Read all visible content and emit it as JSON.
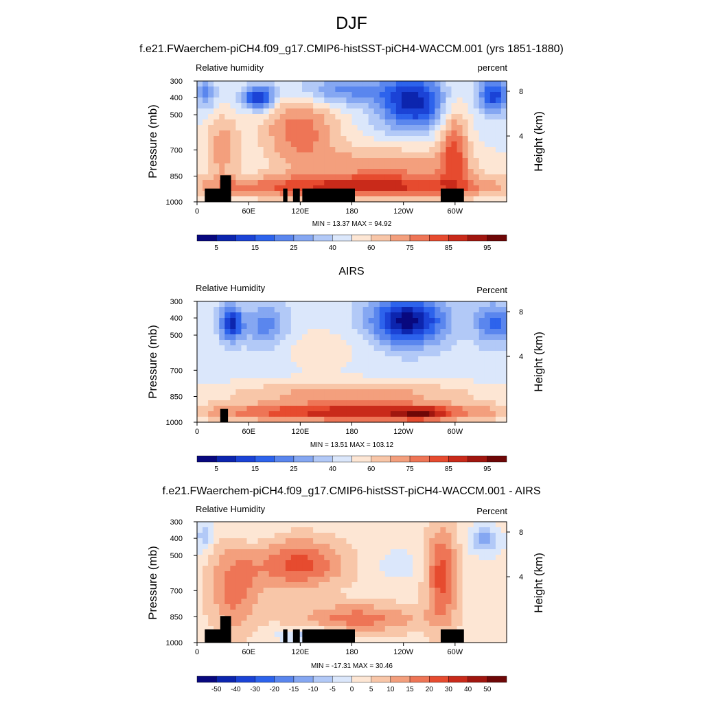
{
  "figure": {
    "title": "DJF",
    "colors": {
      "rh_scale": [
        "#08087e",
        "#0c25ae",
        "#1b43d6",
        "#2d63ec",
        "#5a86ee",
        "#85a7f2",
        "#b2c9f7",
        "#dbe7fb",
        "#fde6d4",
        "#f8c6a8",
        "#f39f7d",
        "#ee7556",
        "#e64b2f",
        "#c92a1a",
        "#a0160f",
        "#6e0707"
      ],
      "land": "#000000"
    }
  },
  "chart_data": [
    {
      "type": "heatmap",
      "title": "f.e21.FWaerchem-piCH4.f09_g17.CMIP6-histSST-piCH4-WACCM.001 (yrs 1851-1880)",
      "left_label": "Relative humidity",
      "right_label": "percent",
      "xlabel": "",
      "ylabel": "Pressure (mb)",
      "y2label": "Height (km)",
      "x_ticks": [
        "0",
        "60E",
        "120E",
        "180",
        "120W",
        "60W"
      ],
      "y_ticks": [
        "300",
        "400",
        "500",
        "700",
        "850",
        "1000"
      ],
      "y2_ticks": [
        "8",
        "4"
      ],
      "ylim": [
        1000,
        300
      ],
      "stats": "MIN =  13.37  MAX =  94.92",
      "min": 13.37,
      "max": 94.92,
      "colorbar_labels": [
        "5",
        "15",
        "25",
        "40",
        "60",
        "75",
        "85",
        "95"
      ]
    },
    {
      "type": "heatmap",
      "title": "AIRS",
      "left_label": "Relative Humidity",
      "right_label": "Percent",
      "xlabel": "",
      "ylabel": "Pressure (mb)",
      "y2label": "Height (km)",
      "x_ticks": [
        "0",
        "60E",
        "120E",
        "180",
        "120W",
        "60W"
      ],
      "y_ticks": [
        "300",
        "400",
        "500",
        "700",
        "850",
        "1000"
      ],
      "y2_ticks": [
        "8",
        "4"
      ],
      "ylim": [
        1000,
        300
      ],
      "stats": "MIN =  13.51  MAX = 103.12",
      "min": 13.51,
      "max": 103.12,
      "colorbar_labels": [
        "5",
        "15",
        "25",
        "40",
        "60",
        "75",
        "85",
        "95"
      ]
    },
    {
      "type": "heatmap",
      "title": "f.e21.FWaerchem-piCH4.f09_g17.CMIP6-histSST-piCH4-WACCM.001 - AIRS",
      "left_label": "Relative Humidity",
      "right_label": "Percent",
      "xlabel": "",
      "ylabel": "Pressure (mb)",
      "y2label": "Height (km)",
      "x_ticks": [
        "0",
        "60E",
        "120E",
        "180",
        "120W",
        "60W"
      ],
      "y_ticks": [
        "300",
        "400",
        "500",
        "700",
        "850",
        "1000"
      ],
      "y2_ticks": [
        "8",
        "4"
      ],
      "ylim": [
        1000,
        300
      ],
      "stats": "MIN = -17.31  MAX =  30.46",
      "min": -17.31,
      "max": 30.46,
      "colorbar_labels": [
        "-50",
        "-40",
        "-30",
        "-20",
        "-15",
        "-10",
        "-5",
        "0",
        "5",
        "10",
        "15",
        "20",
        "30",
        "40",
        "50"
      ]
    }
  ]
}
